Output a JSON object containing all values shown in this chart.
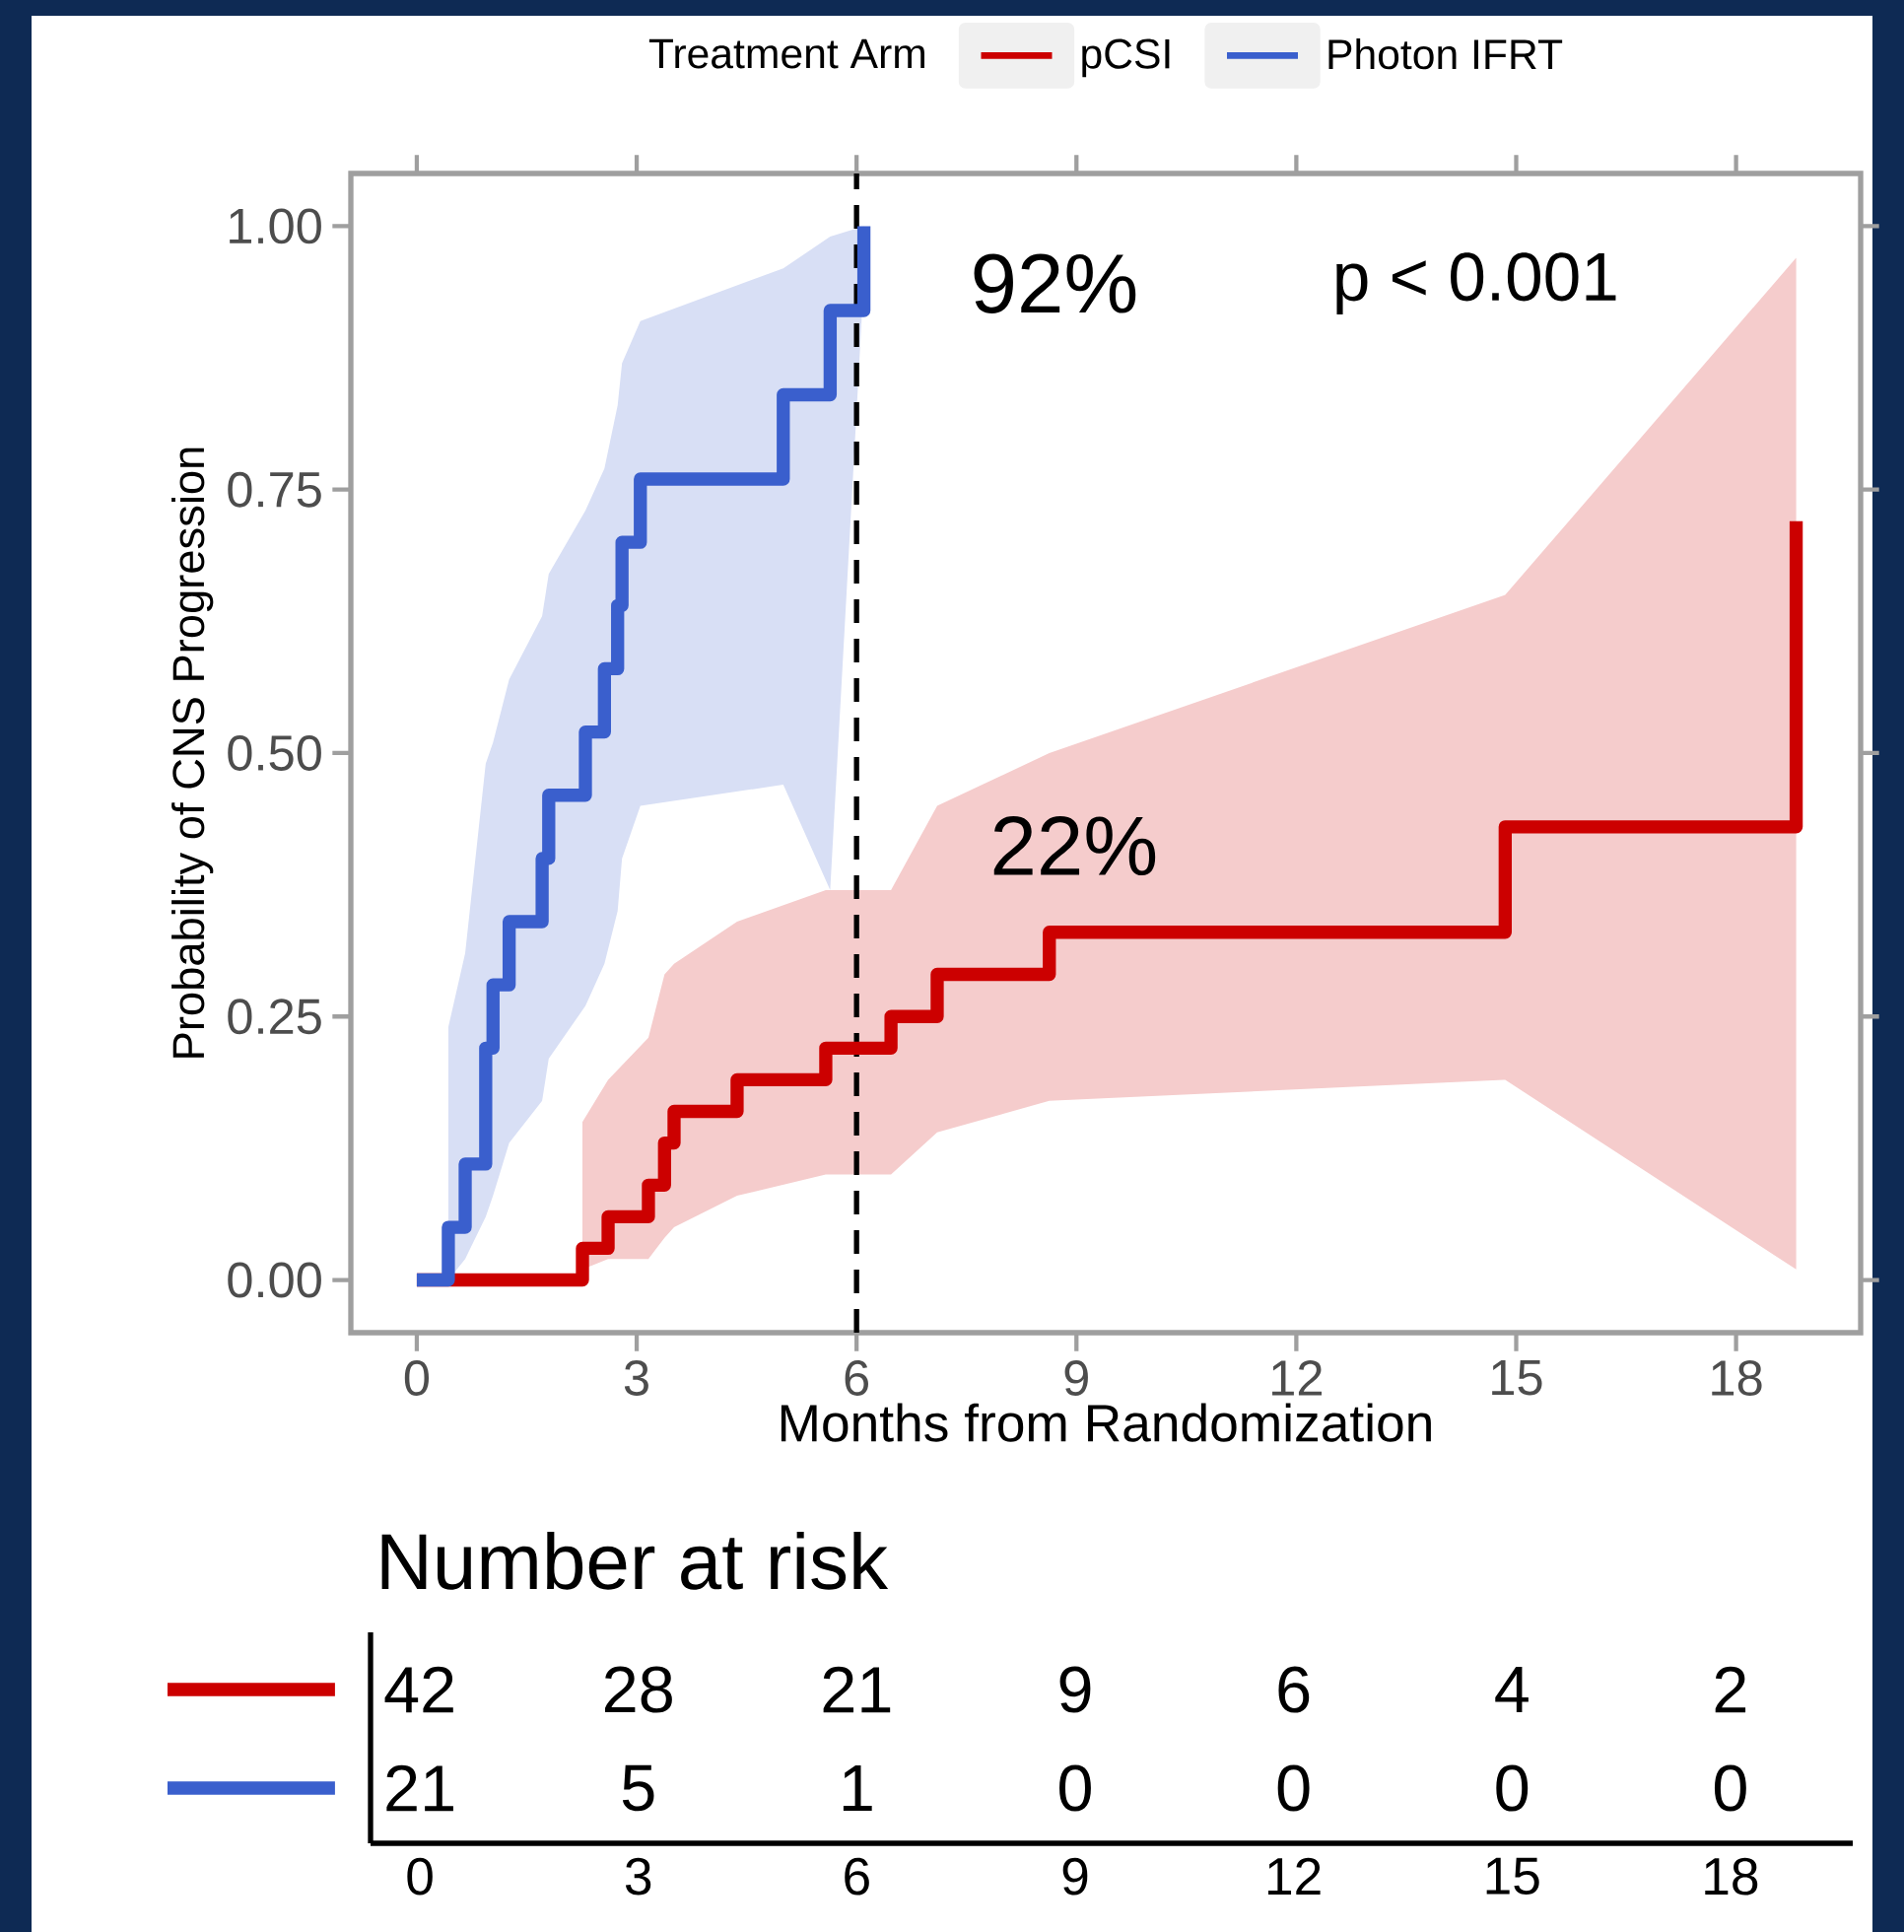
{
  "chart_data": [
    {
      "type": "step",
      "legend_title": "Treatment Arm",
      "legend": "top",
      "xlabel": "Months from Randomization",
      "ylabel": "Probability of CNS Progression",
      "xlim": [
        -0.9,
        19.7
      ],
      "ylim": [
        -0.05,
        1.05
      ],
      "xticks": [
        0,
        3,
        6,
        9,
        12,
        15,
        18
      ],
      "yticks": [
        {
          "value": 0,
          "label": "0.00"
        },
        {
          "value": 0.25,
          "label": "0.25"
        },
        {
          "value": 0.5,
          "label": "0.50"
        },
        {
          "value": 0.75,
          "label": "0.75"
        },
        {
          "value": 1,
          "label": "1.00"
        }
      ],
      "annotations": [
        "92%",
        "p < 0.001",
        "22%"
      ],
      "ref_lines": [
        {
          "axis": "x",
          "value": 6,
          "color": "#000000",
          "line_style": "dashed"
        }
      ],
      "series": [
        {
          "name": "pCSI",
          "color": "#cc0000",
          "x": [
            0,
            2.26,
            2.61,
            3.16,
            3.38,
            3.51,
            4.37,
            5.58,
            6.47,
            7.1,
            8.63,
            14.85,
            18.82
          ],
          "values": [
            0,
            0.03,
            0.06,
            0.09,
            0.13,
            0.16,
            0.19,
            0.22,
            0.25,
            0.29,
            0.33,
            0.43,
            0.72
          ],
          "lower": [
            null,
            0.01,
            0.02,
            0.02,
            0.04,
            0.05,
            0.08,
            0.1,
            0.1,
            0.14,
            0.17,
            0.19,
            0.01
          ],
          "upper": [
            null,
            0.15,
            0.19,
            0.23,
            0.29,
            0.3,
            0.34,
            0.37,
            0.37,
            0.45,
            0.5,
            0.65,
            0.97
          ]
        },
        {
          "name": "Photon IFRT",
          "color": "#3a5fcd",
          "x": [
            0,
            0.43,
            0.66,
            0.94,
            1.04,
            1.26,
            1.71,
            1.8,
            2.3,
            2.56,
            2.74,
            2.8,
            3.05,
            5.0,
            5.64,
            6.1
          ],
          "values": [
            0,
            0.05,
            0.11,
            0.22,
            0.28,
            0.34,
            0.4,
            0.46,
            0.52,
            0.58,
            0.64,
            0.7,
            0.76,
            0.84,
            0.92,
            1.0
          ],
          "lower": [
            null,
            0,
            0.02,
            0.06,
            0.08,
            0.13,
            0.17,
            0.21,
            0.26,
            0.3,
            0.35,
            0.4,
            0.45,
            0.47,
            0.37,
            0.95
          ],
          "upper": [
            null,
            0.24,
            0.31,
            0.49,
            0.51,
            0.57,
            0.63,
            0.67,
            0.73,
            0.77,
            0.83,
            0.87,
            0.91,
            0.96,
            0.99,
            1.0
          ]
        }
      ]
    },
    {
      "type": "other",
      "title": "Number at risk",
      "categories": [
        "0",
        "3",
        "6",
        "9",
        "12",
        "15",
        "18"
      ],
      "data_labels": true,
      "series": [
        {
          "color": "#cc0000",
          "values": [
            42,
            28,
            21,
            9,
            6,
            4,
            2
          ]
        },
        {
          "color": "#3a5fcd",
          "values": [
            21,
            5,
            1,
            0,
            0,
            0,
            0
          ]
        }
      ]
    }
  ]
}
